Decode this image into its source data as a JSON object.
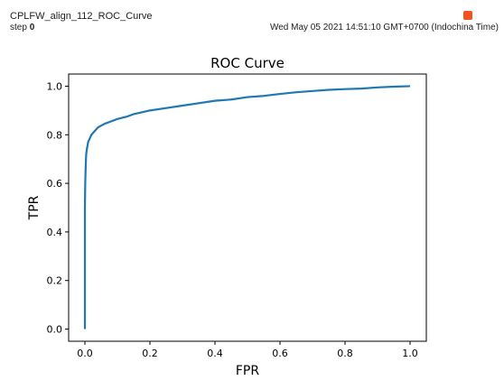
{
  "header": {
    "run_name": "CPLFW_align_112_ROC_Curve",
    "step_label": "step",
    "step_value": "0",
    "timestamp": "Wed May 05 2021 14:51:10 GMT+0700 (Indochina Time)",
    "pin_icon": "pin-icon",
    "pin_color": "#f4511e"
  },
  "chart_data": {
    "type": "line",
    "title": "ROC Curve",
    "xlabel": "FPR",
    "ylabel": "TPR",
    "xlim": [
      -0.05,
      1.05
    ],
    "ylim": [
      -0.05,
      1.05
    ],
    "xticks": [
      "0.0",
      "0.2",
      "0.4",
      "0.6",
      "0.8",
      "1.0"
    ],
    "yticks": [
      "0.0",
      "0.2",
      "0.4",
      "0.6",
      "0.8",
      "1.0"
    ],
    "grid": false,
    "series": [
      {
        "color": "#1f77b4",
        "x": [
          0,
          0,
          0.001,
          0.002,
          0.003,
          0.004,
          0.006,
          0.008,
          0.01,
          0.015,
          0.02,
          0.03,
          0.04,
          0.06,
          0.08,
          0.1,
          0.13,
          0.15,
          0.2,
          0.25,
          0.3,
          0.35,
          0.4,
          0.45,
          0.5,
          0.55,
          0.6,
          0.65,
          0.7,
          0.75,
          0.8,
          0.85,
          0.9,
          0.95,
          1.0
        ],
        "y": [
          0,
          0.5,
          0.6,
          0.65,
          0.69,
          0.72,
          0.74,
          0.755,
          0.77,
          0.785,
          0.8,
          0.815,
          0.83,
          0.845,
          0.855,
          0.865,
          0.875,
          0.885,
          0.9,
          0.91,
          0.92,
          0.93,
          0.94,
          0.945,
          0.955,
          0.96,
          0.968,
          0.975,
          0.98,
          0.985,
          0.988,
          0.99,
          0.995,
          0.998,
          1.0
        ]
      }
    ]
  }
}
